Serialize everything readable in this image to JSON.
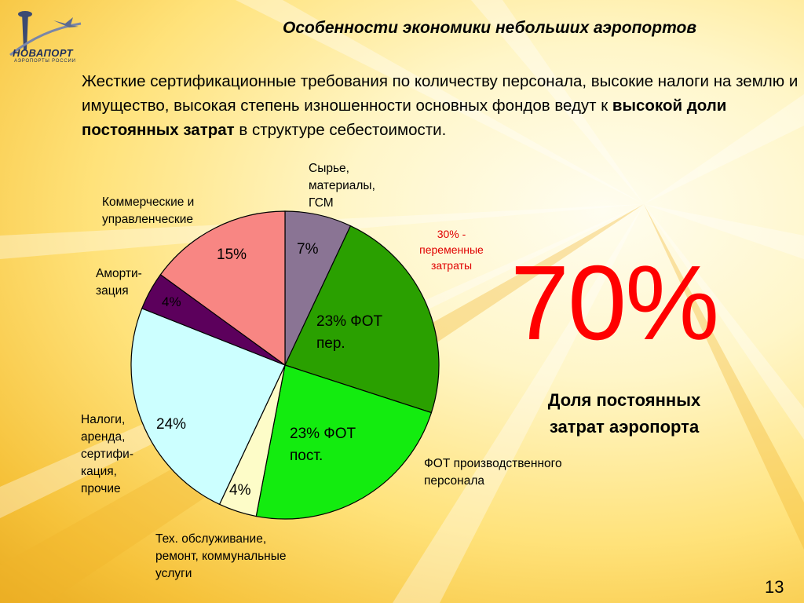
{
  "header": {
    "title": "Особенности экономики небольших аэропортов",
    "logo_text": "НОВАПОРТ",
    "logo_subtext": "АЭРОПОРТЫ РОССИИ"
  },
  "intro": {
    "part1": "Жесткие сертификационные требования по количеству персонала, высокие налоги на землю и имущество, высокая степень изношенности основных фондов ведут к ",
    "bold": "высокой доли постоянных затрат",
    "part2": " в структуре себестоимости."
  },
  "labels": {
    "raw": "Сырье,\nматериалы,\nГСМ",
    "commercial": "Коммерческие и\nуправленческие",
    "amort": "Аморти-\nзация",
    "taxes": "Налоги,\nаренда,\nсертифи-\nкация,\nпрочие",
    "tech": "Тех. обслуживание,\nремонт, коммунальные\nуслуги",
    "fot": "ФОТ производственного\nперсонала",
    "variable": "30% -\nпеременные\nзатраты"
  },
  "summary": {
    "big_value": "70%",
    "caption": "Доля постоянных\nзатрат аэропорта"
  },
  "page_number": "13",
  "chart_data": {
    "type": "pie",
    "start_angle_deg": 90,
    "direction": "clockwise",
    "slices": [
      {
        "label": "7%",
        "value": 7,
        "color": "#8a7494"
      },
      {
        "label": "23% ФОТ\nпер.",
        "value": 23,
        "color": "#2aa000"
      },
      {
        "label": "23% ФОТ\nпост.",
        "value": 23,
        "color": "#13ec0f"
      },
      {
        "label": "4%",
        "value": 4,
        "color": "#fdfcc8"
      },
      {
        "label": "24%",
        "value": 24,
        "color": "#ccffff"
      },
      {
        "label": "4%",
        "value": 4,
        "color": "#5c005c"
      },
      {
        "label": "15%",
        "value": 15,
        "color": "#f88683"
      }
    ]
  }
}
